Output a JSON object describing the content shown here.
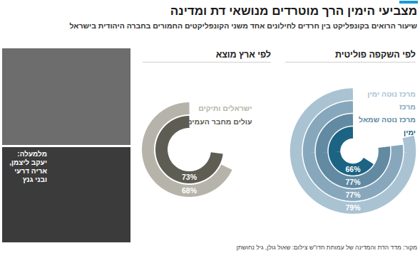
{
  "title": "מצביעי הימין הרך מוטרדים מנושאי דת ומדינה",
  "subtitle": "שיעור הרואים בקונפליקט בין חרדים לחילונים אחד משני הקונפליקטים החמורים בחברה היהודית בישראל",
  "source": "מקור: מדד הדת והמדינה של עמותת חדו\"ש",
  "photo_credit": "צילום: שאול גולן, גיל נחושתן",
  "photo_caption": "מלמעלה: יעקב ליצמן, אריה דרעי ובני גנץ",
  "chart_data": [
    {
      "type": "radial_bar",
      "title": "לפי השקפה פוליטית",
      "categories": [
        "מרכז נוטה ימין",
        "מרכז",
        "מרכז נוטה שמאל",
        "ימין"
      ],
      "values": [
        79,
        77,
        77,
        66
      ],
      "value_labels": [
        "79%",
        "77%",
        "77%",
        "66%"
      ],
      "colors": [
        "#a9c3d3",
        "#87a7bc",
        "#628aa2",
        "#1d6383"
      ],
      "xlim": [
        0,
        100
      ],
      "data_labels": true,
      "tick_labels": false
    },
    {
      "type": "radial_bar",
      "title": "לפי ארץ מוצא",
      "categories": [
        "ישראלים ותיקים",
        "עולים מחבר העמים"
      ],
      "values": [
        68,
        73
      ],
      "value_labels": [
        "68%",
        "73%"
      ],
      "colors": [
        "#b6b4aa",
        "#5e5d54"
      ],
      "xlim": [
        0,
        100
      ],
      "data_labels": true,
      "tick_labels": false
    }
  ]
}
